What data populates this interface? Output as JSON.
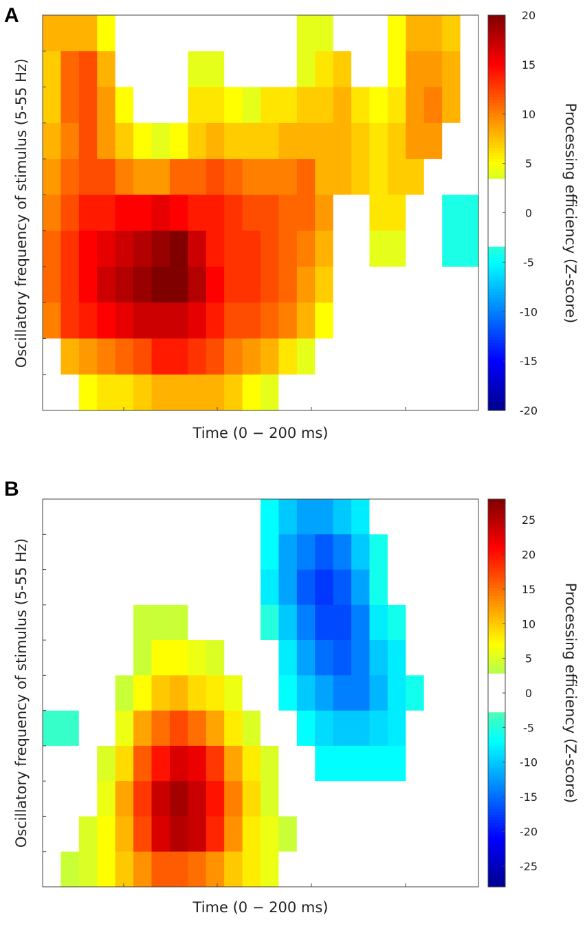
{
  "figure": {
    "panels": [
      {
        "letter": "A",
        "xlabel": "Time (0 − 200 ms)",
        "ylabel": "Oscillatory frequency of stimulus (5-55 Hz)",
        "colorbar_label": "Processing efficiency  (Z-score)"
      },
      {
        "letter": "B",
        "xlabel": "Time (0 − 200 ms)",
        "ylabel": "Oscillatory frequency of stimulus (5-55 Hz)",
        "colorbar_label": "Processing efficiency  (Z-score)"
      }
    ]
  },
  "colors": {
    "colormap": [
      "#00008f",
      "#0000ff",
      "#0080ff",
      "#00ffff",
      "#80ff80",
      "#ffff00",
      "#ff8000",
      "#ff0000",
      "#800000"
    ]
  },
  "chart_data": [
    {
      "type": "heatmap",
      "panel": "A",
      "title": "",
      "xlabel": "Time (0 − 200 ms)",
      "ylabel": "Oscillatory frequency of stimulus (5-55 Hz)",
      "x_range": [
        0,
        200
      ],
      "y_range": [
        5,
        55
      ],
      "colorbar": {
        "label": "Processing efficiency  (Z-score)",
        "min": -20,
        "max": 20,
        "ticks": [
          20,
          15,
          10,
          5,
          0,
          -5,
          -10,
          -15,
          -20
        ],
        "threshold": 3.5
      },
      "grid_rows": 11,
      "grid_cols": 24,
      "values": [
        [
          8,
          8,
          8,
          5,
          0,
          0,
          0,
          0,
          0,
          0,
          0,
          0,
          0,
          0,
          4,
          4,
          0,
          0,
          0,
          5,
          8,
          8,
          7,
          0
        ],
        [
          7,
          11,
          12,
          8,
          0,
          0,
          0,
          0,
          4,
          4,
          0,
          0,
          0,
          0,
          4,
          6,
          7,
          0,
          0,
          5,
          9,
          9,
          8,
          0
        ],
        [
          7,
          11,
          12,
          9,
          5,
          0,
          0,
          0,
          6,
          6,
          5,
          4,
          6,
          6,
          7,
          7,
          8,
          6,
          5,
          6,
          9,
          10,
          8,
          0
        ],
        [
          8,
          10,
          12,
          9,
          7,
          5,
          4,
          5,
          7,
          8,
          7,
          7,
          7,
          8,
          8,
          8,
          8,
          7,
          6,
          7,
          9,
          9,
          0,
          0
        ],
        [
          9,
          11,
          12,
          12,
          10,
          9,
          9,
          11,
          11,
          12,
          11,
          10,
          10,
          10,
          11,
          8,
          8,
          7,
          6,
          7,
          7,
          0,
          0,
          0
        ],
        [
          10,
          12,
          14,
          14,
          15,
          15,
          16,
          15,
          14,
          14,
          13,
          12,
          12,
          11,
          11,
          9,
          0,
          0,
          6,
          6,
          0,
          0,
          -4,
          -4
        ],
        [
          11,
          13,
          15,
          16,
          17,
          18,
          19,
          20,
          17,
          14,
          13,
          13,
          12,
          11,
          10,
          8,
          0,
          0,
          4,
          4,
          0,
          0,
          -4,
          -4
        ],
        [
          11,
          13,
          15,
          17,
          18,
          19,
          20,
          20,
          18,
          15,
          13,
          13,
          12,
          11,
          9,
          7,
          0,
          0,
          0,
          0,
          0,
          0,
          0,
          0
        ],
        [
          10,
          13,
          14,
          15,
          16,
          17,
          17,
          17,
          16,
          14,
          12,
          12,
          11,
          10,
          8,
          5,
          0,
          0,
          0,
          0,
          0,
          0,
          0,
          0
        ],
        [
          0,
          8,
          9,
          10,
          11,
          12,
          14,
          14,
          13,
          12,
          10,
          9,
          8,
          6,
          4,
          0,
          0,
          0,
          0,
          0,
          0,
          0,
          0,
          0
        ],
        [
          0,
          0,
          5,
          6,
          6,
          7,
          8,
          8,
          8,
          8,
          7,
          5,
          4,
          0,
          0,
          0,
          0,
          0,
          0,
          0,
          0,
          0,
          0,
          0
        ]
      ]
    },
    {
      "type": "heatmap",
      "panel": "B",
      "title": "",
      "xlabel": "Time (0 − 200 ms)",
      "ylabel": "Oscillatory frequency of stimulus (5-55 Hz)",
      "x_range": [
        0,
        200
      ],
      "y_range": [
        5,
        55
      ],
      "colorbar": {
        "label": "Processing efficiency  (Z-score)",
        "min": -28,
        "max": 28,
        "ticks": [
          25,
          20,
          15,
          10,
          5,
          0,
          -5,
          -10,
          -15,
          -20,
          -25
        ],
        "threshold": 3
      },
      "grid_rows": 11,
      "grid_cols": 24,
      "values": [
        [
          0,
          0,
          0,
          0,
          0,
          0,
          0,
          0,
          0,
          0,
          0,
          0,
          -7,
          -10,
          -12,
          -12,
          -10,
          -8,
          0,
          0,
          0,
          0,
          0,
          0
        ],
        [
          0,
          0,
          0,
          0,
          0,
          0,
          0,
          0,
          0,
          0,
          0,
          0,
          -7,
          -12,
          -14,
          -16,
          -14,
          -10,
          -6,
          0,
          0,
          0,
          0,
          0
        ],
        [
          0,
          0,
          0,
          0,
          0,
          0,
          0,
          0,
          0,
          0,
          0,
          0,
          -8,
          -12,
          -16,
          -18,
          -16,
          -12,
          -6,
          0,
          0,
          0,
          0,
          0
        ],
        [
          0,
          0,
          0,
          0,
          0,
          4,
          4,
          4,
          0,
          0,
          0,
          0,
          -5,
          -10,
          -14,
          -17,
          -17,
          -14,
          -8,
          -6,
          0,
          0,
          0,
          0
        ],
        [
          0,
          0,
          0,
          0,
          0,
          4,
          7,
          7,
          6,
          5,
          0,
          0,
          0,
          -8,
          -12,
          -15,
          -16,
          -14,
          -10,
          -8,
          0,
          0,
          0,
          0
        ],
        [
          0,
          2,
          0,
          0,
          4,
          7,
          10,
          11,
          9,
          8,
          6,
          0,
          0,
          -7,
          -10,
          -12,
          -14,
          -14,
          -11,
          -8,
          -6,
          0,
          0,
          0
        ],
        [
          -4,
          -4,
          0,
          0,
          6,
          12,
          15,
          17,
          15,
          12,
          8,
          5,
          0,
          0,
          -7,
          -9,
          -10,
          -10,
          -9,
          -8,
          0,
          0,
          0,
          0
        ],
        [
          0,
          0,
          0,
          5,
          9,
          16,
          20,
          23,
          22,
          18,
          12,
          8,
          5,
          0,
          0,
          -7,
          -7,
          -7,
          -7,
          -7,
          0,
          0,
          0,
          0
        ],
        [
          0,
          0,
          0,
          6,
          12,
          18,
          24,
          26,
          24,
          20,
          14,
          9,
          5,
          0,
          0,
          0,
          0,
          0,
          0,
          0,
          0,
          0,
          0,
          0
        ],
        [
          0,
          0,
          5,
          7,
          11,
          17,
          23,
          25,
          24,
          19,
          13,
          8,
          6,
          4,
          0,
          0,
          0,
          0,
          0,
          0,
          0,
          0,
          0,
          0
        ],
        [
          0,
          4,
          5,
          7,
          10,
          13,
          16,
          16,
          15,
          13,
          10,
          8,
          6,
          0,
          0,
          0,
          0,
          0,
          0,
          0,
          0,
          0,
          0,
          0
        ]
      ]
    }
  ]
}
